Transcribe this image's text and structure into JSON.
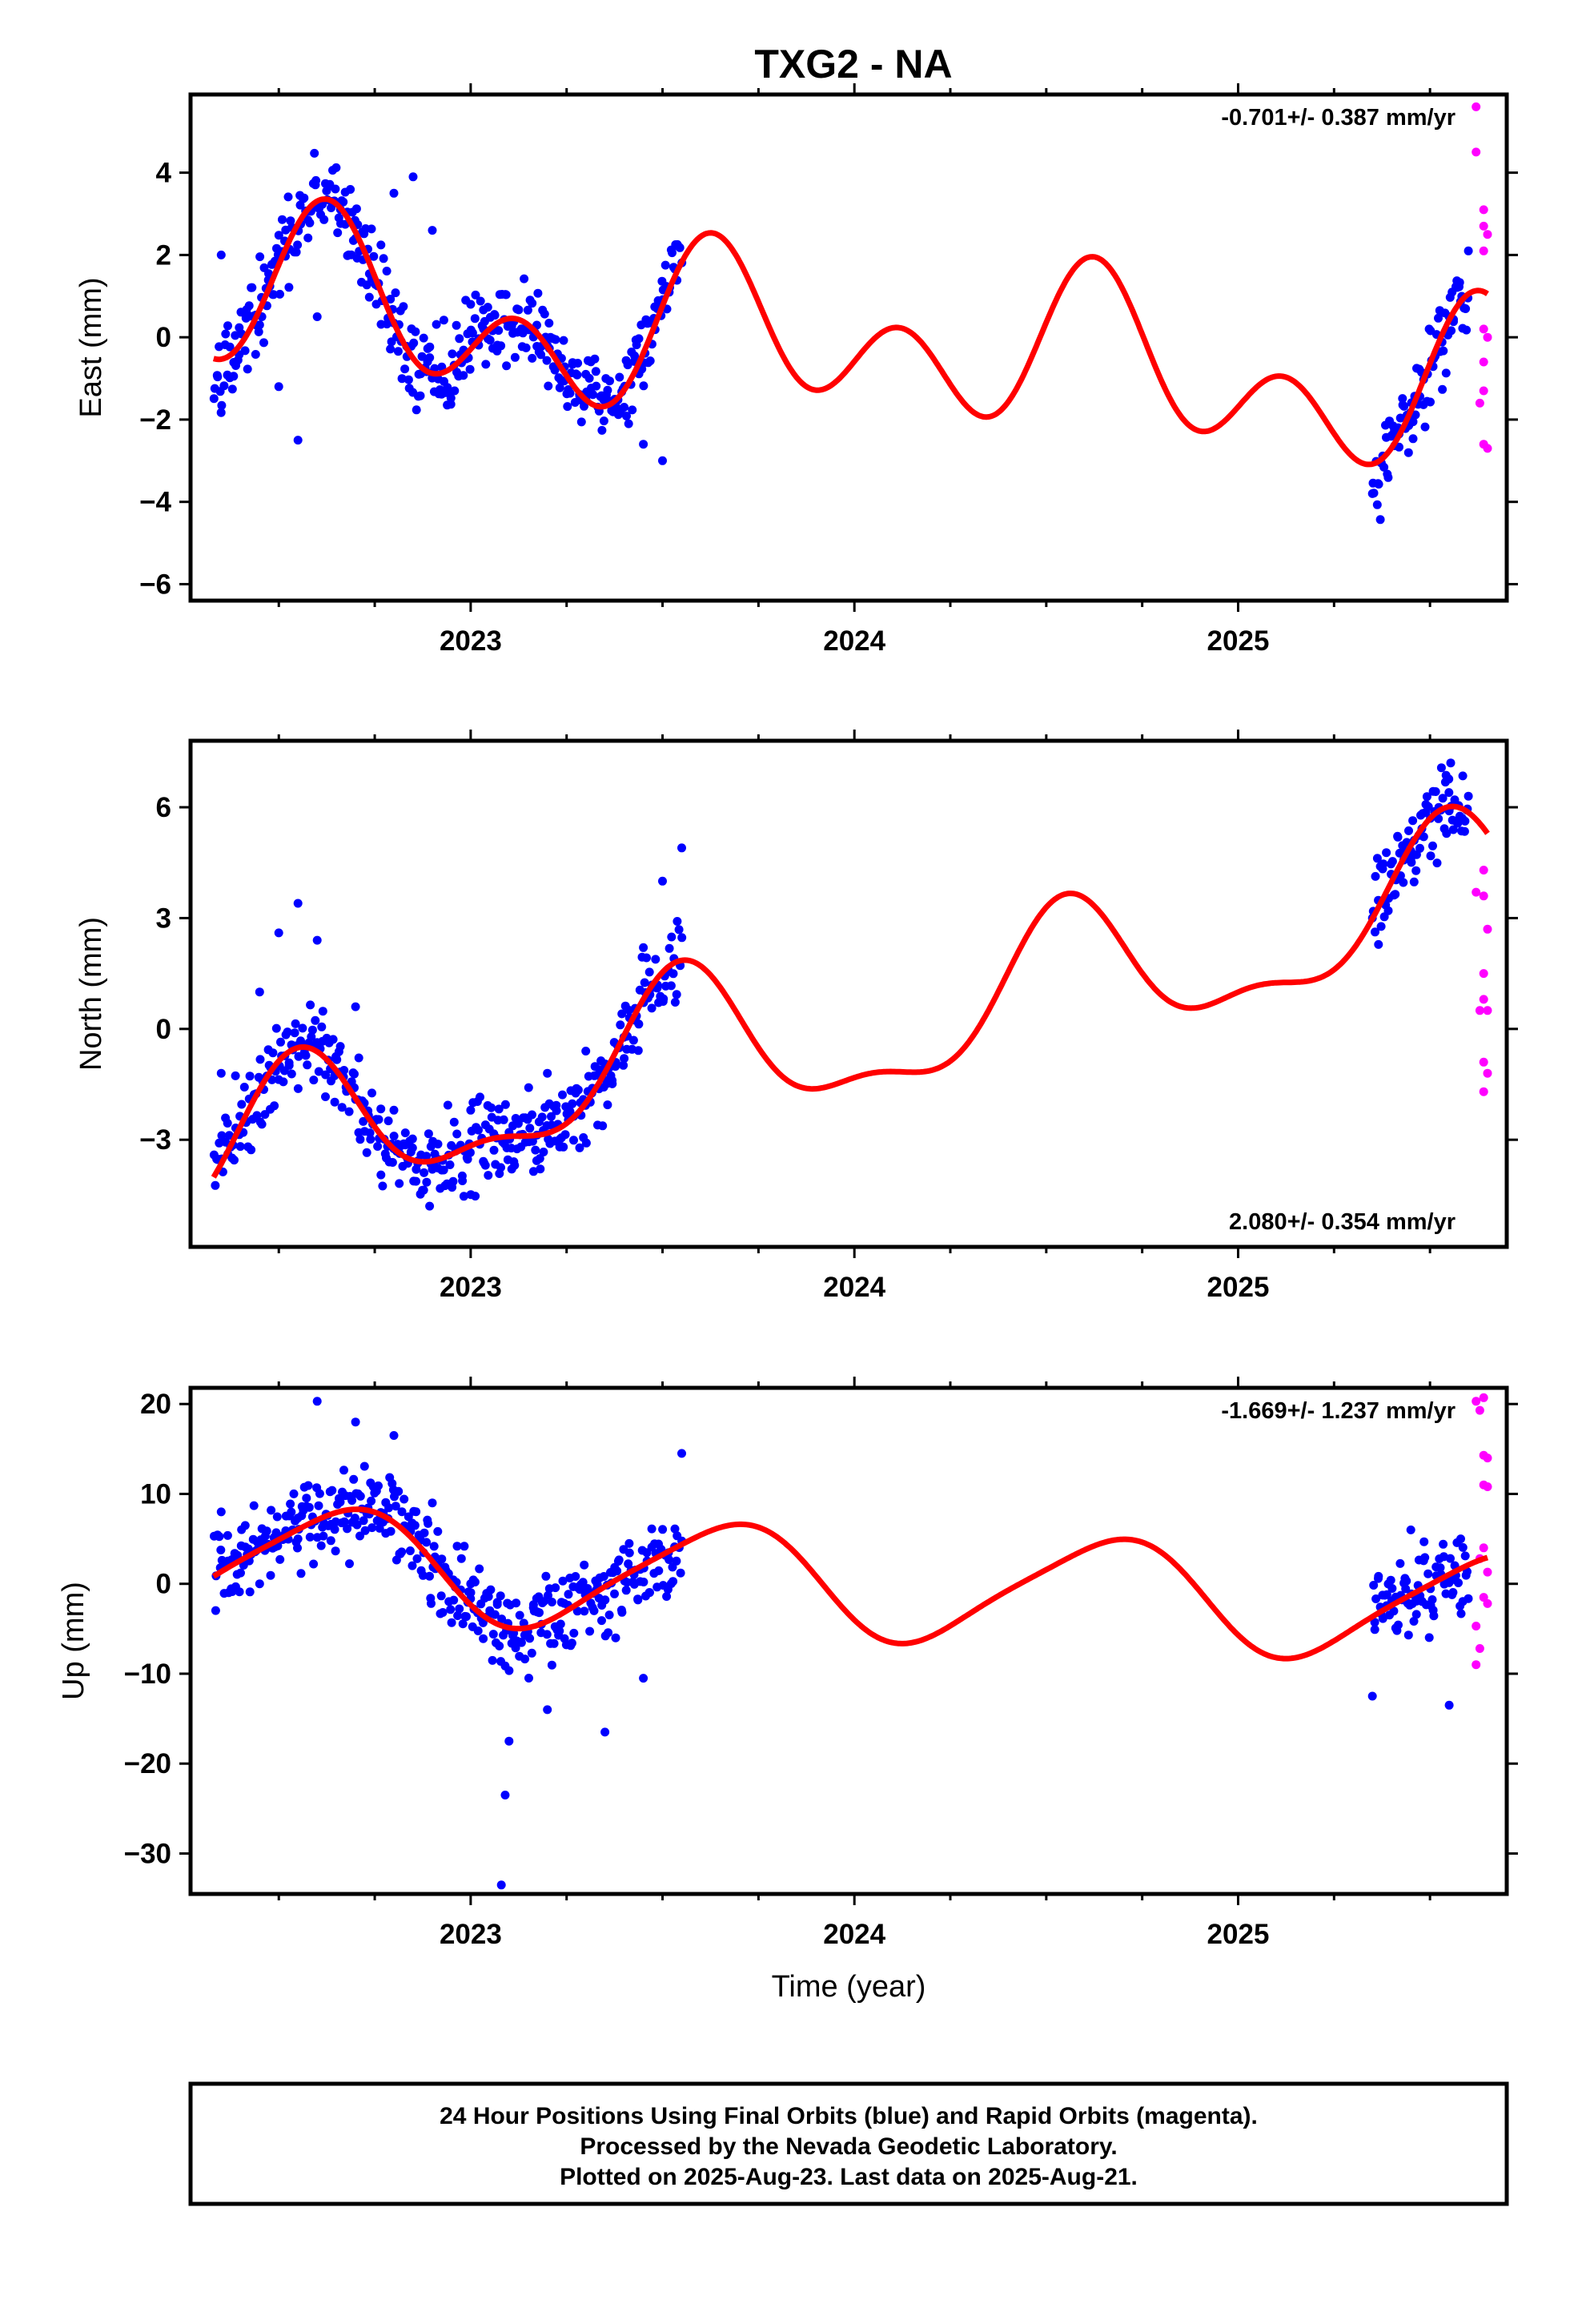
{
  "figure": {
    "title": "TXG2 - NA",
    "footer": {
      "lines": [
        "24 Hour Positions Using Final Orbits (blue) and Rapid Orbits (magenta).",
        "Processed by the Nevada Geodetic Laboratory.",
        "Plotted on 2025-Aug-23. Last data on 2025-Aug-21."
      ]
    }
  },
  "chart_data": [
    {
      "type": "scatter",
      "panel": "east",
      "ylabel": "East (mm)",
      "xlabel": "",
      "xlim": [
        2022.27,
        2025.7
      ],
      "ylim": [
        -6.4,
        5.9
      ],
      "xticks": [
        2023,
        2024,
        2025
      ],
      "xticklabels": [
        "2023",
        "2024",
        "2025"
      ],
      "xminorticks": [
        2022.25,
        2022.5,
        2022.75,
        2023.25,
        2023.5,
        2023.75,
        2024.25,
        2024.5,
        2024.75,
        2025.25,
        2025.5
      ],
      "yticks": [
        4,
        2,
        0,
        -2,
        -4,
        -6
      ],
      "yticklabels": [
        "4",
        "2",
        "0",
        "−2",
        "−4",
        "−6"
      ],
      "rate": "-0.701+/- 0.387 mm/yr",
      "rate_position": "top-right",
      "colors": {
        "final": "#0000ff",
        "rapid": "#ff00ff",
        "model": "#ff0000"
      },
      "final_segments": [
        {
          "start": 2022.33,
          "end": 2023.55
        },
        {
          "start": 2025.35,
          "end": 2025.6
        }
      ],
      "final_points_anchor": [
        [
          2022.35,
          2.0
        ],
        [
          2022.45,
          0.3
        ],
        [
          2022.5,
          -1.2
        ],
        [
          2022.55,
          -2.5
        ],
        [
          2022.6,
          0.5
        ],
        [
          2022.7,
          2.4
        ],
        [
          2022.8,
          3.5
        ],
        [
          2022.85,
          3.9
        ],
        [
          2022.9,
          2.6
        ],
        [
          2023.0,
          0.8
        ],
        [
          2023.1,
          0.4
        ],
        [
          2023.2,
          -0.2
        ],
        [
          2023.3,
          -0.9
        ],
        [
          2023.4,
          -1.7
        ],
        [
          2023.45,
          -2.6
        ],
        [
          2023.5,
          -3.0
        ],
        [
          2025.35,
          -3.8
        ],
        [
          2025.45,
          -2.0
        ],
        [
          2025.55,
          0.5
        ],
        [
          2025.6,
          2.1
        ]
      ],
      "rapid_points": [
        [
          2025.62,
          5.6
        ],
        [
          2025.62,
          4.5
        ],
        [
          2025.64,
          3.1
        ],
        [
          2025.64,
          2.7
        ],
        [
          2025.65,
          2.5
        ],
        [
          2025.64,
          2.1
        ],
        [
          2025.64,
          0.2
        ],
        [
          2025.65,
          0.0
        ],
        [
          2025.64,
          -0.6
        ],
        [
          2025.64,
          -1.3
        ],
        [
          2025.63,
          -1.6
        ],
        [
          2025.64,
          -2.6
        ],
        [
          2025.65,
          -2.7
        ]
      ],
      "model": {
        "offset": -0.2,
        "trend": -0.701,
        "t0": 2024.0,
        "harmonics": [
          [
            1.15,
            2022.65,
            1
          ],
          [
            1.4,
            2022.62,
            2
          ],
          [
            0.25,
            2022.2,
            0.5
          ]
        ]
      }
    },
    {
      "type": "scatter",
      "panel": "north",
      "ylabel": "North (mm)",
      "xlabel": "",
      "xlim": [
        2022.27,
        2025.7
      ],
      "ylim": [
        -5.9,
        7.8
      ],
      "xticks": [
        2023,
        2024,
        2025
      ],
      "xticklabels": [
        "2023",
        "2024",
        "2025"
      ],
      "xminorticks": [
        2022.25,
        2022.5,
        2022.75,
        2023.25,
        2023.5,
        2023.75,
        2024.25,
        2024.5,
        2024.75,
        2025.25,
        2025.5
      ],
      "yticks": [
        6,
        3,
        0,
        -3
      ],
      "yticklabels": [
        "6",
        "3",
        "0",
        "−3"
      ],
      "rate": "2.080+/- 0.354 mm/yr",
      "rate_position": "bottom-right",
      "colors": {
        "final": "#0000ff",
        "rapid": "#ff00ff",
        "model": "#ff0000"
      },
      "final_segments": [
        {
          "start": 2022.33,
          "end": 2023.55
        },
        {
          "start": 2025.35,
          "end": 2025.6
        }
      ],
      "final_points_anchor": [
        [
          2022.35,
          -1.2
        ],
        [
          2022.45,
          1.0
        ],
        [
          2022.5,
          2.6
        ],
        [
          2022.55,
          3.4
        ],
        [
          2022.6,
          2.4
        ],
        [
          2022.7,
          0.6
        ],
        [
          2022.8,
          -2.2
        ],
        [
          2022.9,
          -3.8
        ],
        [
          2023.0,
          -2.2
        ],
        [
          2023.1,
          -2.8
        ],
        [
          2023.2,
          -1.2
        ],
        [
          2023.3,
          -0.6
        ],
        [
          2023.4,
          -0.8
        ],
        [
          2023.45,
          2.2
        ],
        [
          2023.5,
          4.0
        ],
        [
          2023.55,
          4.9
        ],
        [
          2025.35,
          3.0
        ],
        [
          2025.45,
          4.6
        ],
        [
          2025.55,
          5.9
        ],
        [
          2025.6,
          6.3
        ]
      ],
      "rapid_points": [
        [
          2025.62,
          3.7
        ],
        [
          2025.64,
          4.3
        ],
        [
          2025.64,
          3.6
        ],
        [
          2025.65,
          2.7
        ],
        [
          2025.64,
          1.5
        ],
        [
          2025.64,
          0.8
        ],
        [
          2025.63,
          0.5
        ],
        [
          2025.65,
          0.5
        ],
        [
          2025.64,
          -0.9
        ],
        [
          2025.65,
          -1.2
        ],
        [
          2025.64,
          -1.7
        ]
      ],
      "model": {
        "offset": 0.0,
        "trend": 2.08,
        "t0": 2024.0,
        "harmonics": [
          [
            1.9,
            2023.55,
            1
          ],
          [
            0.75,
            2023.55,
            2
          ],
          [
            0.2,
            2023.3,
            0.5
          ]
        ]
      }
    },
    {
      "type": "scatter",
      "panel": "up",
      "ylabel": "Up (mm)",
      "xlabel": "Time (year)",
      "xlim": [
        2022.27,
        2025.7
      ],
      "ylim": [
        -34.5,
        21.8
      ],
      "xticks": [
        2023,
        2024,
        2025
      ],
      "xticklabels": [
        "2023",
        "2024",
        "2025"
      ],
      "xminorticks": [
        2022.25,
        2022.5,
        2022.75,
        2023.25,
        2023.5,
        2023.75,
        2024.25,
        2024.5,
        2024.75,
        2025.25,
        2025.5
      ],
      "yticks": [
        20,
        10,
        0,
        -10,
        -20,
        -30
      ],
      "yticklabels": [
        "20",
        "10",
        "0",
        "−10",
        "−20",
        "−30"
      ],
      "rate": "-1.669+/- 1.237 mm/yr",
      "rate_position": "top-right",
      "colors": {
        "final": "#0000ff",
        "rapid": "#ff00ff",
        "model": "#ff0000"
      },
      "final_segments": [
        {
          "start": 2022.33,
          "end": 2023.55
        },
        {
          "start": 2025.35,
          "end": 2025.6
        }
      ],
      "final_points_anchor": [
        [
          2022.35,
          8.0
        ],
        [
          2022.45,
          0.0
        ],
        [
          2022.55,
          5.0
        ],
        [
          2022.6,
          20.3
        ],
        [
          2022.7,
          18.0
        ],
        [
          2022.8,
          16.5
        ],
        [
          2022.9,
          9.0
        ],
        [
          2023.0,
          0.0
        ],
        [
          2023.08,
          -33.5
        ],
        [
          2023.09,
          -23.5
        ],
        [
          2023.1,
          -17.5
        ],
        [
          2023.2,
          -14.0
        ],
        [
          2023.35,
          -16.5
        ],
        [
          2023.45,
          -10.5
        ],
        [
          2023.55,
          14.5
        ],
        [
          2025.35,
          -12.5
        ],
        [
          2025.45,
          6.0
        ],
        [
          2025.55,
          -13.5
        ],
        [
          2025.58,
          5.0
        ]
      ],
      "rapid_points": [
        [
          2025.62,
          20.3
        ],
        [
          2025.63,
          19.3
        ],
        [
          2025.64,
          20.7
        ],
        [
          2025.64,
          14.3
        ],
        [
          2025.65,
          14.0
        ],
        [
          2025.64,
          11.0
        ],
        [
          2025.65,
          10.8
        ],
        [
          2025.64,
          4.0
        ],
        [
          2025.63,
          2.8
        ],
        [
          2025.65,
          1.3
        ],
        [
          2025.64,
          -1.5
        ],
        [
          2025.65,
          -2.2
        ],
        [
          2025.62,
          -4.7
        ],
        [
          2025.63,
          -7.2
        ],
        [
          2025.62,
          -9.0
        ]
      ],
      "model": {
        "offset": 0.0,
        "trend": -1.669,
        "t0": 2024.0,
        "harmonics": [
          [
            6.0,
            2023.66,
            1
          ],
          [
            1.0,
            2023.3,
            2
          ]
        ]
      }
    }
  ]
}
